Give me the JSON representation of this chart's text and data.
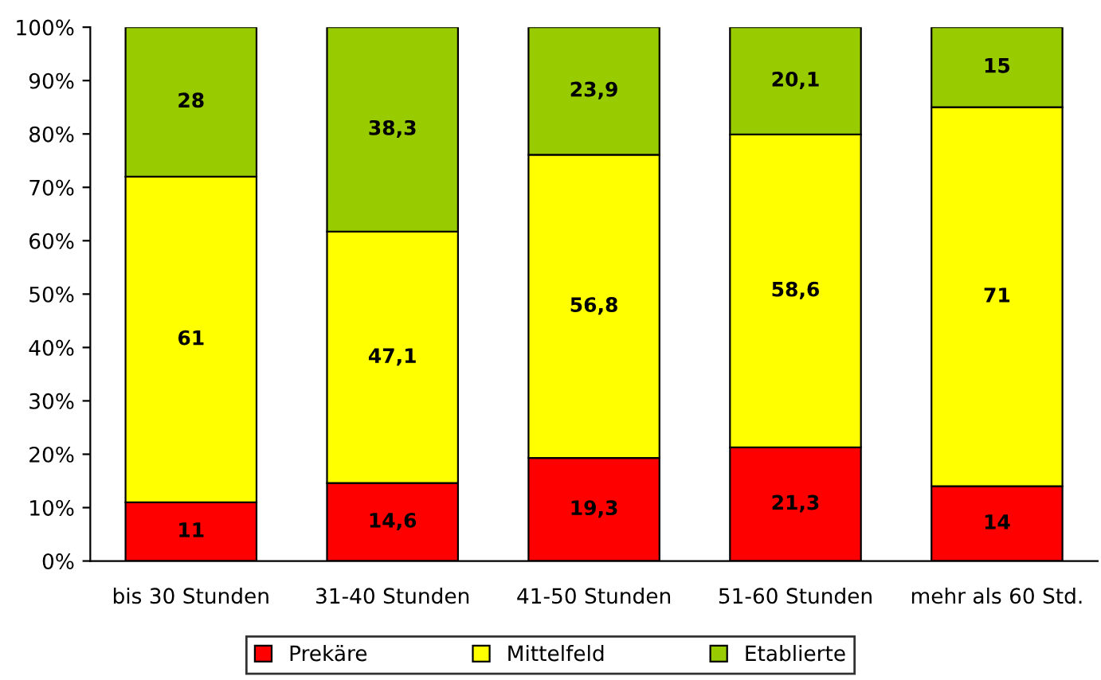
{
  "chart_data": {
    "type": "bar",
    "stacked": true,
    "categories": [
      "bis 30 Stunden",
      "31-40 Stunden",
      "41-50 Stunden",
      "51-60 Stunden",
      "mehr als 60 Std."
    ],
    "series": [
      {
        "name": "Prekäre",
        "color": "#ff0000",
        "values": [
          11,
          14.6,
          19.3,
          21.3,
          14
        ],
        "value_labels": [
          "11",
          "14,6",
          "19,3",
          "21,3",
          "14"
        ]
      },
      {
        "name": "Mittelfeld",
        "color": "#ffff00",
        "values": [
          61,
          47.1,
          56.8,
          58.6,
          71
        ],
        "value_labels": [
          "61",
          "47,1",
          "56,8",
          "58,6",
          "71"
        ]
      },
      {
        "name": "Etablierte",
        "color": "#99cc00",
        "values": [
          28,
          38.3,
          23.9,
          20.1,
          15
        ],
        "value_labels": [
          "28",
          "38,3",
          "23,9",
          "20,1",
          "15"
        ]
      }
    ],
    "ylim": [
      0,
      100
    ],
    "yticks": [
      {
        "value": 0,
        "label": "0%"
      },
      {
        "value": 10,
        "label": "10%"
      },
      {
        "value": 20,
        "label": "20%"
      },
      {
        "value": 30,
        "label": "30%"
      },
      {
        "value": 40,
        "label": "40%"
      },
      {
        "value": 50,
        "label": "50%"
      },
      {
        "value": 60,
        "label": "60%"
      },
      {
        "value": 70,
        "label": "70%"
      },
      {
        "value": 80,
        "label": "80%"
      },
      {
        "value": 90,
        "label": "90%"
      },
      {
        "value": 100,
        "label": "100%"
      }
    ],
    "grid": false,
    "legend": "bottom"
  }
}
